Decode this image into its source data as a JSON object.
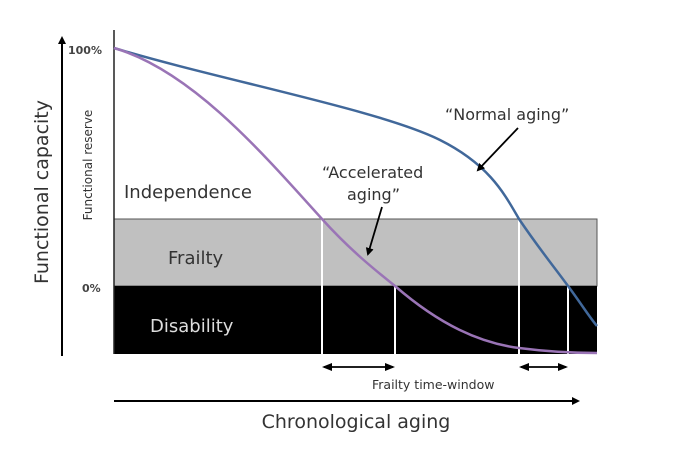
{
  "y_axis_label": "Functional capacity",
  "reserve_label": "Functional reserve",
  "tick_top": "100%",
  "tick_zero": "0%",
  "x_axis_label": "Chronological aging",
  "zones": {
    "independence": "Independence",
    "frailty": "Frailty",
    "disability": "Disability"
  },
  "curves": {
    "normal": {
      "label": "“Normal aging”",
      "color": "#41689a"
    },
    "accelerated": {
      "label_line1": "“Accelerated",
      "label_line2": "aging”",
      "color": "#9a74b6"
    }
  },
  "frailty_window_label": "Frailty time-window",
  "colors": {
    "frailty_band": "#c0c0c0",
    "disability_band": "#000000"
  }
}
